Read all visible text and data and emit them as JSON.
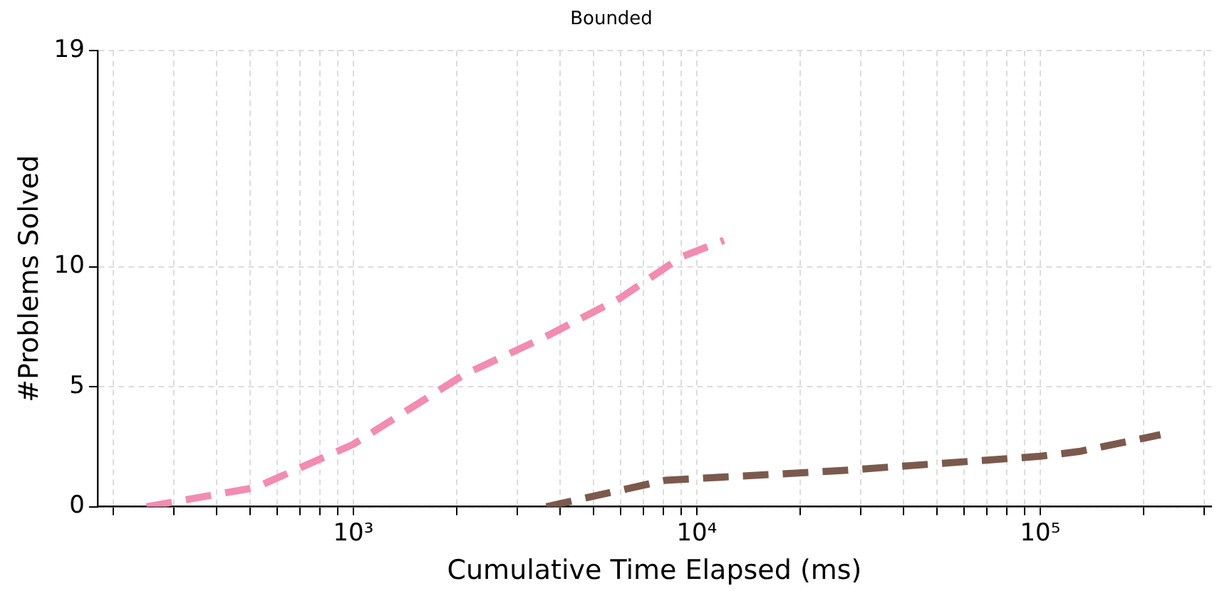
{
  "chart_data": {
    "type": "line",
    "title": "Bounded",
    "xlabel": "Cumulative Time Elapsed (ms)",
    "ylabel": "#Problems Solved",
    "log": "x",
    "grid": true,
    "line_style": "dashed",
    "marker": "none",
    "legend": false,
    "xlim": [
      180,
      315000
    ],
    "ylim": [
      0,
      19
    ],
    "yticks": [
      0,
      5,
      10,
      19
    ],
    "xticks": [
      {
        "value": 200,
        "label": null
      },
      {
        "value": 300,
        "label": null
      },
      {
        "value": 400,
        "label": null
      },
      {
        "value": 500,
        "label": null
      },
      {
        "value": 600,
        "label": null
      },
      {
        "value": 700,
        "label": null
      },
      {
        "value": 800,
        "label": null
      },
      {
        "value": 900,
        "label": null
      },
      {
        "value": 1000,
        "label": "10³"
      },
      {
        "value": 2000,
        "label": null
      },
      {
        "value": 3000,
        "label": null
      },
      {
        "value": 4000,
        "label": null
      },
      {
        "value": 5000,
        "label": null
      },
      {
        "value": 6000,
        "label": null
      },
      {
        "value": 7000,
        "label": null
      },
      {
        "value": 8000,
        "label": null
      },
      {
        "value": 9000,
        "label": null
      },
      {
        "value": 10000,
        "label": "10⁴"
      },
      {
        "value": 20000,
        "label": null
      },
      {
        "value": 30000,
        "label": null
      },
      {
        "value": 40000,
        "label": null
      },
      {
        "value": 50000,
        "label": null
      },
      {
        "value": 60000,
        "label": null
      },
      {
        "value": 70000,
        "label": null
      },
      {
        "value": 80000,
        "label": null
      },
      {
        "value": 90000,
        "label": null
      },
      {
        "value": 100000,
        "label": "10⁵"
      },
      {
        "value": 200000,
        "label": null
      },
      {
        "value": 300000,
        "label": null
      }
    ],
    "series": [
      {
        "color": "#f28cb1",
        "x": [
          250,
          520,
          1000,
          2100,
          3650,
          6000,
          9000,
          12000
        ],
        "values": [
          0,
          0.8,
          2.6,
          5.5,
          7.1,
          8.7,
          10.4,
          11.1
        ]
      },
      {
        "color": "#7b5a4d",
        "x": [
          3650,
          8100,
          26000,
          100000,
          130000,
          224000
        ],
        "values": [
          0,
          1.1,
          1.5,
          2.1,
          2.3,
          3.0
        ]
      }
    ]
  }
}
